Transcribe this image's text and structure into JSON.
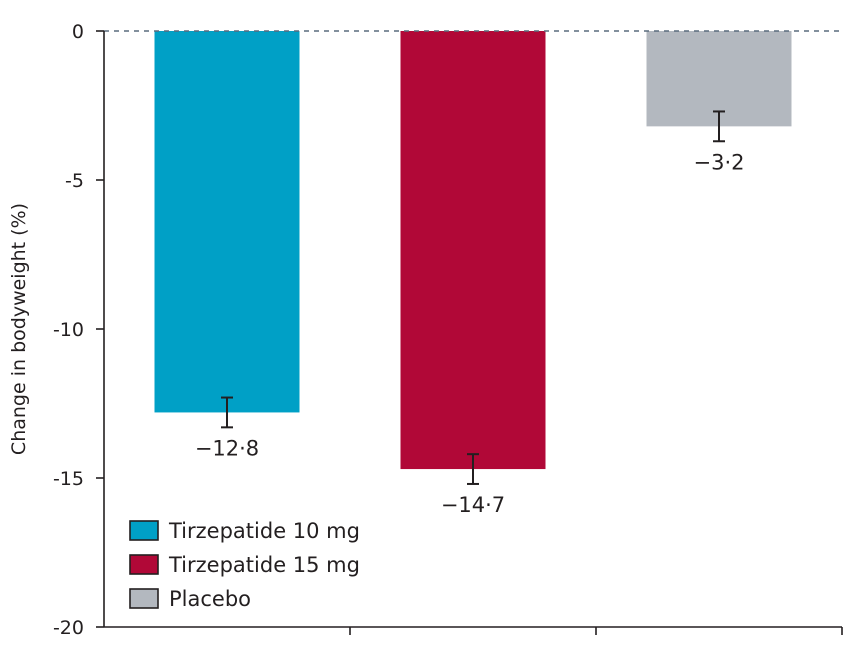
{
  "chart_data": {
    "type": "bar",
    "categories": [
      "Tirzepatide 10 mg",
      "Tirzepatide 15 mg",
      "Placebo"
    ],
    "values": [
      -12.8,
      -14.7,
      -3.2
    ],
    "value_labels": [
      "−12·8",
      "−14·7",
      "−3·2"
    ],
    "error_bars": [
      {
        "low": -13.3,
        "high": -12.3
      },
      {
        "low": -15.2,
        "high": -14.2
      },
      {
        "low": -3.7,
        "high": -2.7
      }
    ],
    "colors": [
      "#00a0c6",
      "#b10837",
      "#b3b8bf"
    ],
    "ylabel": "Change in bodyweight (%)",
    "xlabel": "",
    "ylim": [
      -20,
      0
    ],
    "yticks": [
      0,
      -5,
      -10,
      -15,
      -20
    ],
    "ytick_labels": [
      "0",
      "-5",
      "-10",
      "-15",
      "-20"
    ],
    "zero_line": "dashed",
    "legend": {
      "placement": "bottom-left",
      "entries": [
        "Tirzepatide 10 mg",
        "Tirzepatide 15 mg",
        "Placebo"
      ]
    }
  }
}
